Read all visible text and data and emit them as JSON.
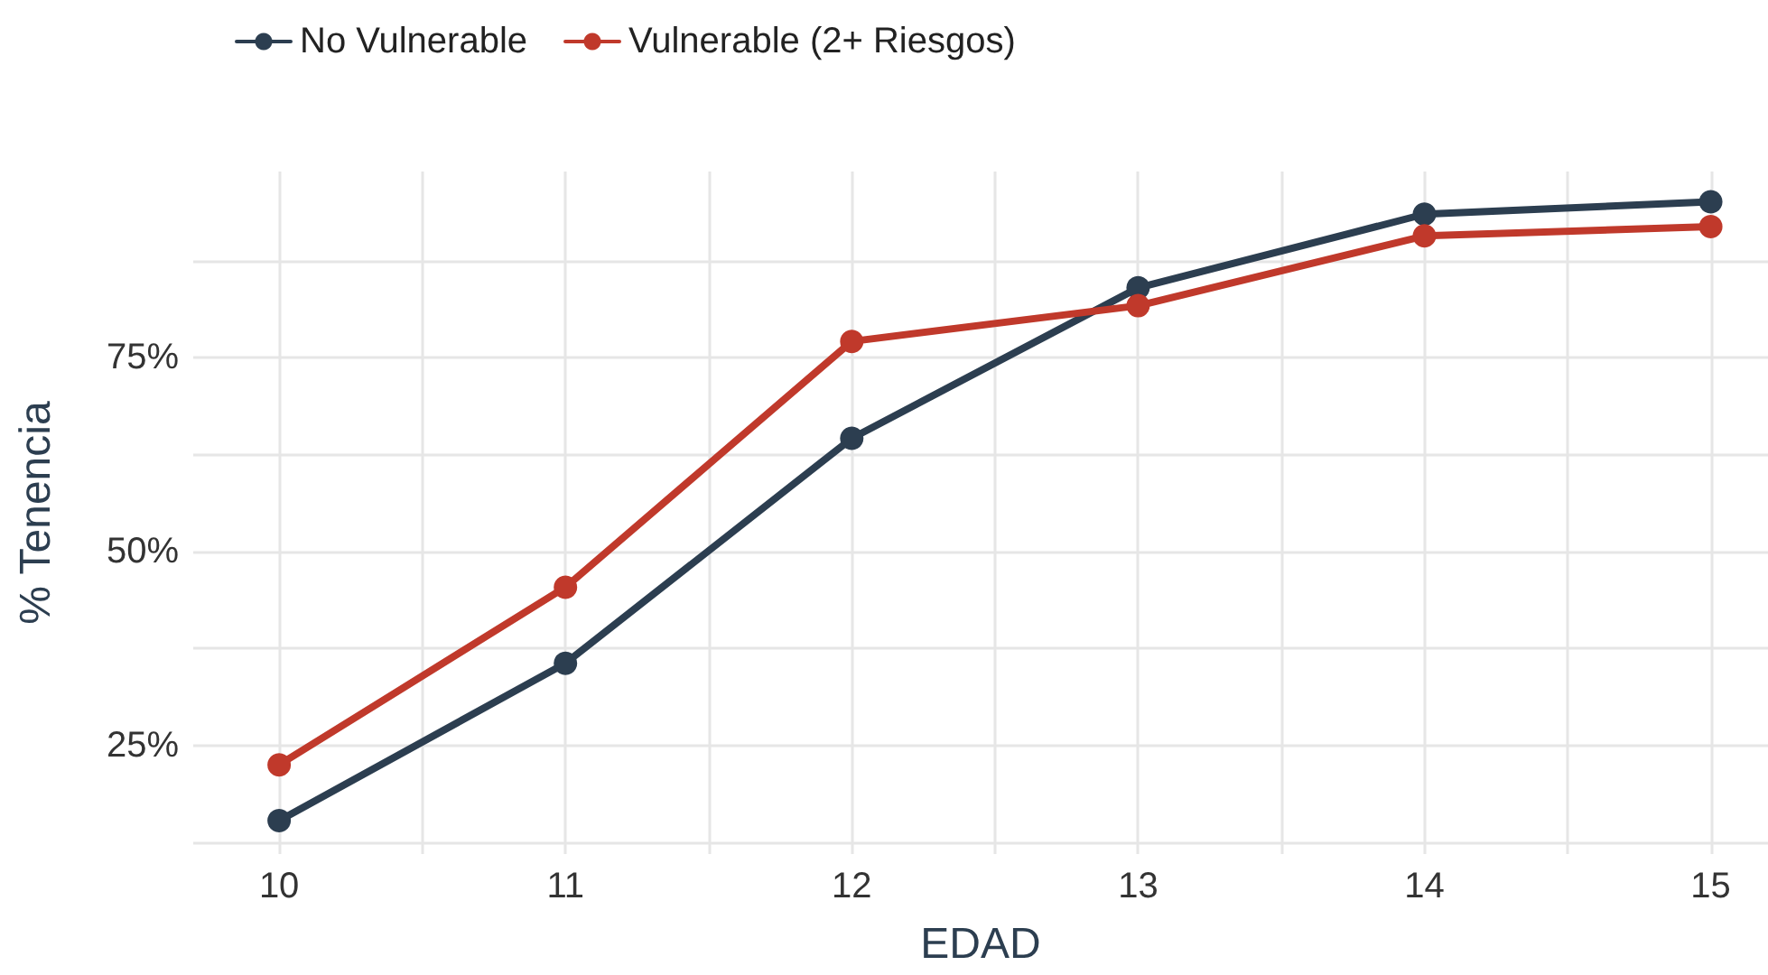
{
  "chart_data": {
    "type": "line",
    "xlabel": "EDAD",
    "ylabel": "% Tenencia",
    "x": [
      10,
      11,
      12,
      13,
      14,
      15
    ],
    "series": [
      {
        "name": "No Vulnerable",
        "color": "#2c3e50",
        "values": [
          15.3,
          35.6,
          64.6,
          84,
          93.5,
          95.1
        ]
      },
      {
        "name": "Vulnerable (2+ Riesgos)",
        "color": "#c0392b",
        "values": [
          22.5,
          45.4,
          77.1,
          81.7,
          90.7,
          91.9
        ]
      }
    ],
    "xlim": [
      9.7,
      15.2
    ],
    "xticks": [
      10,
      {
        "value": 10.5,
        "label": null
      },
      11,
      {
        "value": 11.5,
        "label": null
      },
      12,
      {
        "value": 12.5,
        "label": null
      },
      13,
      {
        "value": 13.5,
        "label": null
      },
      14,
      {
        "value": 14.5,
        "label": null
      },
      15
    ],
    "ylim": [
      11,
      99
    ],
    "yticks": [
      {
        "value": 12.5,
        "label": null
      },
      {
        "value": 25,
        "label": "25%"
      },
      {
        "value": 37.5,
        "label": null
      },
      {
        "value": 50,
        "label": "50%"
      },
      {
        "value": 62.5,
        "label": null
      },
      {
        "value": 75,
        "label": "75%"
      },
      {
        "value": 87.5,
        "label": null
      }
    ],
    "grid": true,
    "legend": "top left",
    "marker": "circle",
    "line_style": "solid"
  }
}
